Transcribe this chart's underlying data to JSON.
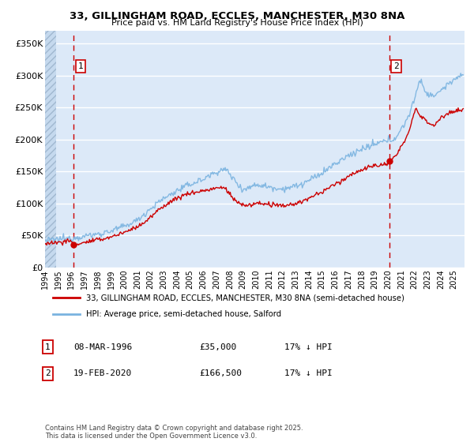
{
  "title": "33, GILLINGHAM ROAD, ECCLES, MANCHESTER, M30 8NA",
  "subtitle": "Price paid vs. HM Land Registry's House Price Index (HPI)",
  "ylim": [
    0,
    370000
  ],
  "yticks": [
    0,
    50000,
    100000,
    150000,
    200000,
    250000,
    300000,
    350000
  ],
  "ytick_labels": [
    "£0",
    "£50K",
    "£100K",
    "£150K",
    "£200K",
    "£250K",
    "£300K",
    "£350K"
  ],
  "xlim_start": 1994.0,
  "xlim_end": 2025.8,
  "bg_color": "#dce9f8",
  "fig_bg_color": "#ffffff",
  "grid_color": "#ffffff",
  "sale1_x": 1996.18,
  "sale1_y": 35000,
  "sale1_label": "1",
  "sale1_date": "08-MAR-1996",
  "sale1_price": "£35,000",
  "sale1_hpi": "17% ↓ HPI",
  "sale2_x": 2020.12,
  "sale2_y": 166500,
  "sale2_label": "2",
  "sale2_date": "19-FEB-2020",
  "sale2_price": "£166,500",
  "sale2_hpi": "17% ↓ HPI",
  "legend_line1": "33, GILLINGHAM ROAD, ECCLES, MANCHESTER, M30 8NA (semi-detached house)",
  "legend_line2": "HPI: Average price, semi-detached house, Salford",
  "footnote": "Contains HM Land Registry data © Crown copyright and database right 2025.\nThis data is licensed under the Open Government Licence v3.0.",
  "hpi_color": "#7ab3e0",
  "price_color": "#cc0000",
  "vline_color": "#cc0000",
  "hatch_color": "#c5d9ee"
}
